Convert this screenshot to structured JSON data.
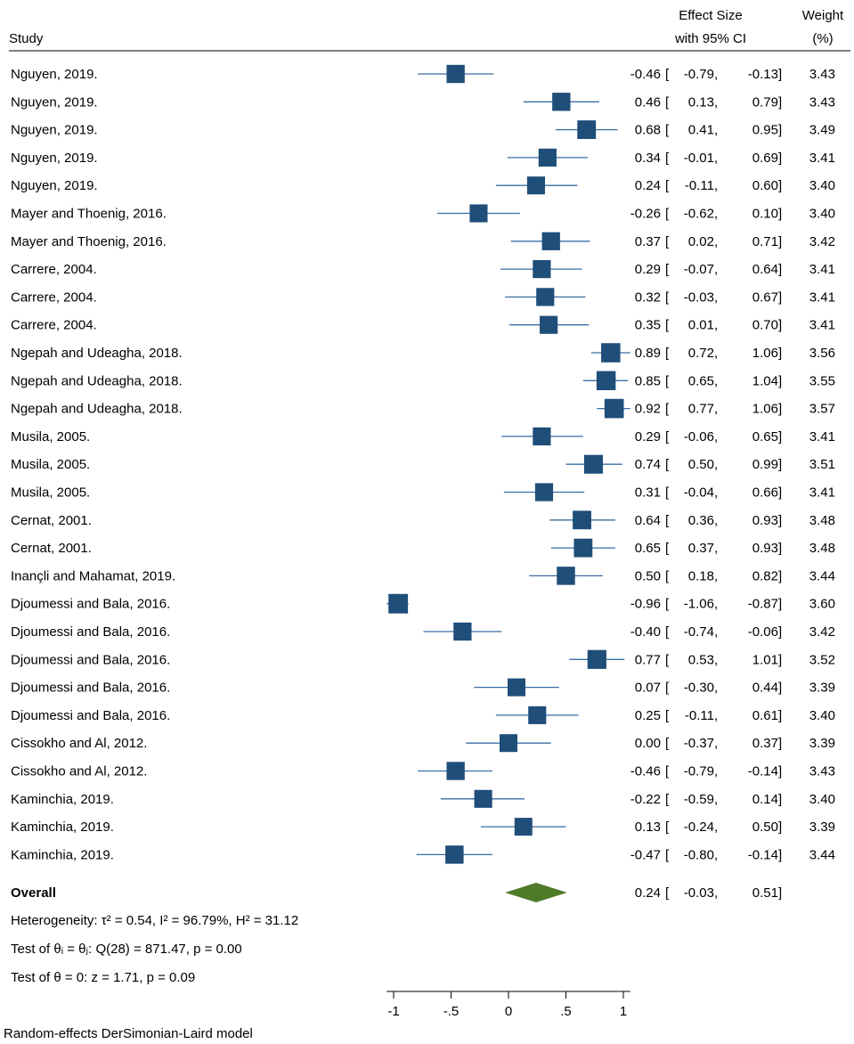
{
  "chart_data": {
    "type": "forest",
    "columns": {
      "study": "Study",
      "effect_line1": "Effect Size",
      "effect_line2": "with 95% CI",
      "weight_line1": "Weight",
      "weight_line2": "(%)"
    },
    "studies": [
      {
        "label": "Nguyen, 2019.",
        "es": -0.46,
        "lo": -0.79,
        "hi": -0.13,
        "es_text": "-0.46",
        "lo_text": "-0.79",
        "hi_text": "-0.13",
        "weight": 3.43,
        "weight_text": "3.43"
      },
      {
        "label": "Nguyen, 2019.",
        "es": 0.46,
        "lo": 0.13,
        "hi": 0.79,
        "es_text": "0.46",
        "lo_text": "0.13",
        "hi_text": "0.79",
        "weight": 3.43,
        "weight_text": "3.43"
      },
      {
        "label": "Nguyen, 2019.",
        "es": 0.68,
        "lo": 0.41,
        "hi": 0.95,
        "es_text": "0.68",
        "lo_text": "0.41",
        "hi_text": "0.95",
        "weight": 3.49,
        "weight_text": "3.49"
      },
      {
        "label": "Nguyen, 2019.",
        "es": 0.34,
        "lo": -0.01,
        "hi": 0.69,
        "es_text": "0.34",
        "lo_text": "-0.01",
        "hi_text": "0.69",
        "weight": 3.41,
        "weight_text": "3.41"
      },
      {
        "label": "Nguyen, 2019.",
        "es": 0.24,
        "lo": -0.11,
        "hi": 0.6,
        "es_text": "0.24",
        "lo_text": "-0.11",
        "hi_text": "0.60",
        "weight": 3.4,
        "weight_text": "3.40"
      },
      {
        "label": "Mayer and Thoenig, 2016.",
        "es": -0.26,
        "lo": -0.62,
        "hi": 0.1,
        "es_text": "-0.26",
        "lo_text": "-0.62",
        "hi_text": "0.10",
        "weight": 3.4,
        "weight_text": "3.40"
      },
      {
        "label": "Mayer and Thoenig, 2016.",
        "es": 0.37,
        "lo": 0.02,
        "hi": 0.71,
        "es_text": "0.37",
        "lo_text": "0.02",
        "hi_text": "0.71",
        "weight": 3.42,
        "weight_text": "3.42"
      },
      {
        "label": "Carrere, 2004.",
        "es": 0.29,
        "lo": -0.07,
        "hi": 0.64,
        "es_text": "0.29",
        "lo_text": "-0.07",
        "hi_text": "0.64",
        "weight": 3.41,
        "weight_text": "3.41"
      },
      {
        "label": "Carrere, 2004.",
        "es": 0.32,
        "lo": -0.03,
        "hi": 0.67,
        "es_text": "0.32",
        "lo_text": "-0.03",
        "hi_text": "0.67",
        "weight": 3.41,
        "weight_text": "3.41"
      },
      {
        "label": "Carrere, 2004.",
        "es": 0.35,
        "lo": 0.01,
        "hi": 0.7,
        "es_text": "0.35",
        "lo_text": "0.01",
        "hi_text": "0.70",
        "weight": 3.41,
        "weight_text": "3.41"
      },
      {
        "label": "Ngepah and Udeagha, 2018.",
        "es": 0.89,
        "lo": 0.72,
        "hi": 1.06,
        "es_text": "0.89",
        "lo_text": "0.72",
        "hi_text": "1.06",
        "weight": 3.56,
        "weight_text": "3.56"
      },
      {
        "label": "Ngepah and Udeagha, 2018.",
        "es": 0.85,
        "lo": 0.65,
        "hi": 1.04,
        "es_text": "0.85",
        "lo_text": "0.65",
        "hi_text": "1.04",
        "weight": 3.55,
        "weight_text": "3.55"
      },
      {
        "label": "Ngepah and Udeagha, 2018.",
        "es": 0.92,
        "lo": 0.77,
        "hi": 1.06,
        "es_text": "0.92",
        "lo_text": "0.77",
        "hi_text": "1.06",
        "weight": 3.57,
        "weight_text": "3.57"
      },
      {
        "label": "Musila, 2005.",
        "es": 0.29,
        "lo": -0.06,
        "hi": 0.65,
        "es_text": "0.29",
        "lo_text": "-0.06",
        "hi_text": "0.65",
        "weight": 3.41,
        "weight_text": "3.41"
      },
      {
        "label": "Musila, 2005.",
        "es": 0.74,
        "lo": 0.5,
        "hi": 0.99,
        "es_text": "0.74",
        "lo_text": "0.50",
        "hi_text": "0.99",
        "weight": 3.51,
        "weight_text": "3.51"
      },
      {
        "label": "Musila, 2005.",
        "es": 0.31,
        "lo": -0.04,
        "hi": 0.66,
        "es_text": "0.31",
        "lo_text": "-0.04",
        "hi_text": "0.66",
        "weight": 3.41,
        "weight_text": "3.41"
      },
      {
        "label": "Cernat, 2001.",
        "es": 0.64,
        "lo": 0.36,
        "hi": 0.93,
        "es_text": "0.64",
        "lo_text": "0.36",
        "hi_text": "0.93",
        "weight": 3.48,
        "weight_text": "3.48"
      },
      {
        "label": "Cernat, 2001.",
        "es": 0.65,
        "lo": 0.37,
        "hi": 0.93,
        "es_text": "0.65",
        "lo_text": "0.37",
        "hi_text": "0.93",
        "weight": 3.48,
        "weight_text": "3.48"
      },
      {
        "label": "Inançli and Mahamat, 2019.",
        "es": 0.5,
        "lo": 0.18,
        "hi": 0.82,
        "es_text": "0.50",
        "lo_text": "0.18",
        "hi_text": "0.82",
        "weight": 3.44,
        "weight_text": "3.44"
      },
      {
        "label": "Djoumessi and Bala, 2016.",
        "es": -0.96,
        "lo": -1.06,
        "hi": -0.87,
        "es_text": "-0.96",
        "lo_text": "-1.06",
        "hi_text": "-0.87",
        "weight": 3.6,
        "weight_text": "3.60"
      },
      {
        "label": "Djoumessi and Bala, 2016.",
        "es": -0.4,
        "lo": -0.74,
        "hi": -0.06,
        "es_text": "-0.40",
        "lo_text": "-0.74",
        "hi_text": "-0.06",
        "weight": 3.42,
        "weight_text": "3.42"
      },
      {
        "label": "Djoumessi and Bala, 2016.",
        "es": 0.77,
        "lo": 0.53,
        "hi": 1.01,
        "es_text": "0.77",
        "lo_text": "0.53",
        "hi_text": "1.01",
        "weight": 3.52,
        "weight_text": "3.52"
      },
      {
        "label": "Djoumessi and Bala, 2016.",
        "es": 0.07,
        "lo": -0.3,
        "hi": 0.44,
        "es_text": "0.07",
        "lo_text": "-0.30",
        "hi_text": "0.44",
        "weight": 3.39,
        "weight_text": "3.39"
      },
      {
        "label": "Djoumessi and Bala, 2016.",
        "es": 0.25,
        "lo": -0.11,
        "hi": 0.61,
        "es_text": "0.25",
        "lo_text": "-0.11",
        "hi_text": "0.61",
        "weight": 3.4,
        "weight_text": "3.40"
      },
      {
        "label": "Cissokho and Al, 2012.",
        "es": 0.0,
        "lo": -0.37,
        "hi": 0.37,
        "es_text": "0.00",
        "lo_text": "-0.37",
        "hi_text": "0.37",
        "weight": 3.39,
        "weight_text": "3.39"
      },
      {
        "label": "Cissokho and Al, 2012.",
        "es": -0.46,
        "lo": -0.79,
        "hi": -0.14,
        "es_text": "-0.46",
        "lo_text": "-0.79",
        "hi_text": "-0.14",
        "weight": 3.43,
        "weight_text": "3.43"
      },
      {
        "label": "Kaminchia, 2019.",
        "es": -0.22,
        "lo": -0.59,
        "hi": 0.14,
        "es_text": "-0.22",
        "lo_text": "-0.59",
        "hi_text": "0.14",
        "weight": 3.4,
        "weight_text": "3.40"
      },
      {
        "label": "Kaminchia, 2019.",
        "es": 0.13,
        "lo": -0.24,
        "hi": 0.5,
        "es_text": "0.13",
        "lo_text": "-0.24",
        "hi_text": "0.50",
        "weight": 3.39,
        "weight_text": "3.39"
      },
      {
        "label": "Kaminchia, 2019.",
        "es": -0.47,
        "lo": -0.8,
        "hi": -0.14,
        "es_text": "-0.47",
        "lo_text": "-0.80",
        "hi_text": "-0.14",
        "weight": 3.44,
        "weight_text": "3.44"
      }
    ],
    "overall": {
      "label": "Overall",
      "es": 0.24,
      "lo": -0.03,
      "hi": 0.51,
      "es_text": "0.24",
      "lo_text": "-0.03",
      "hi_text": "0.51"
    },
    "stats": [
      "Heterogeneity: τ² = 0.54, I² = 96.79%, H² = 31.12",
      "Test of θᵢ = θⱼ: Q(28) = 871.47, p = 0.00",
      "Test of θ = 0: z = 1.71, p = 0.09"
    ],
    "x_ticks": [
      {
        "value": -1,
        "label": "-1"
      },
      {
        "value": -0.5,
        "label": "-.5"
      },
      {
        "value": 0,
        "label": "0"
      },
      {
        "value": 0.5,
        "label": ".5"
      },
      {
        "value": 1,
        "label": "1"
      }
    ],
    "xlim": [
      -1.06,
      1.06
    ],
    "model_note": "Random-effects DerSimonian-Laird model",
    "colors": {
      "marker": "#1f4e79",
      "ci_line": "#3a6ea5",
      "overall": "#4f7a28"
    }
  }
}
